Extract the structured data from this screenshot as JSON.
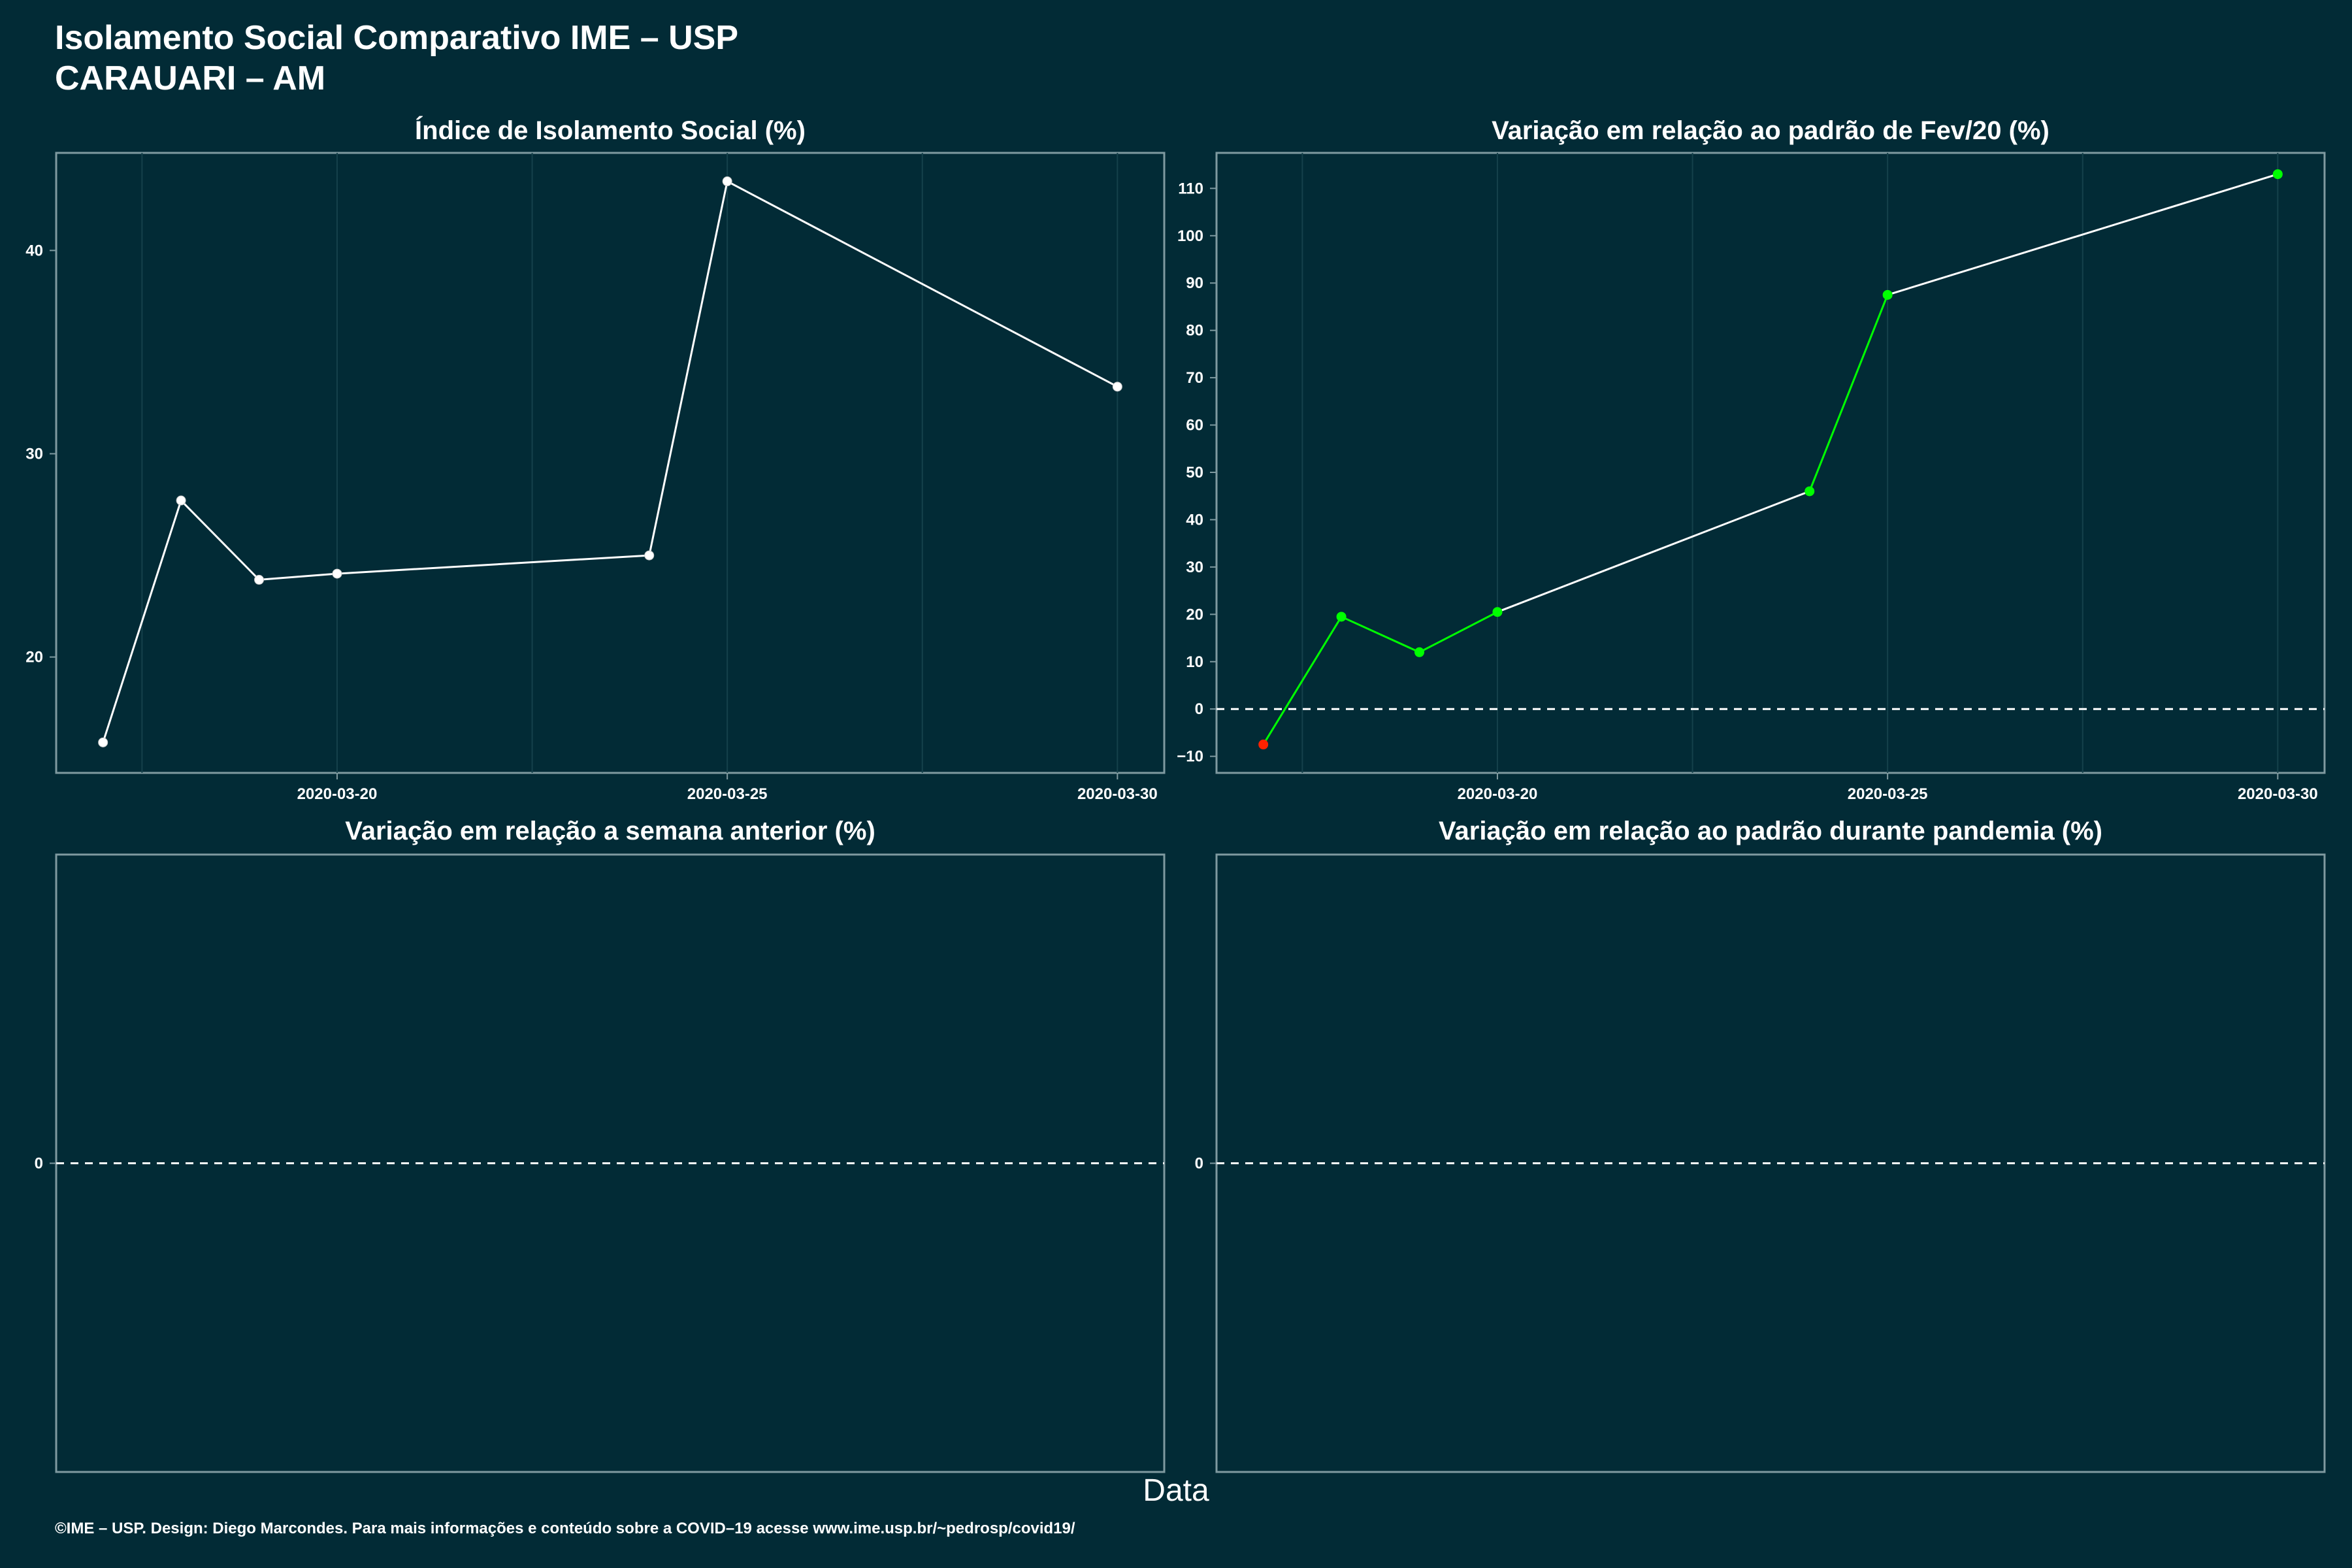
{
  "title": "Isolamento Social Comparativo IME – USP",
  "subtitle": "CARAUARI – AM",
  "xlabel": "Data",
  "caption": "©IME – USP. Design: Diego Marcondes. Para mais informações e conteúdo sobre a COVID–19 acesse www.ime.usp.br/~pedrosp/covid19/",
  "colors": {
    "background": "#022b36",
    "line": "#ffffff",
    "positive": "#00ff00",
    "negative": "#ff2200",
    "panel_border": "#7f9aa0",
    "grid": "#15414b"
  },
  "chart_data": [
    {
      "type": "line",
      "title": "Índice de Isolamento Social (%)",
      "x": [
        "2020-03-17",
        "2020-03-18",
        "2020-03-19",
        "2020-03-20",
        "2020-03-24",
        "2020-03-25",
        "2020-03-30"
      ],
      "values": [
        15.8,
        27.7,
        23.8,
        24.1,
        25.0,
        43.4,
        33.3
      ],
      "xlim": [
        "2020-03-16.4",
        "2020-03-30.6"
      ],
      "ylim": [
        14.3,
        44.8
      ],
      "xticks": [
        "2020-03-20",
        "2020-03-25",
        "2020-03-30"
      ],
      "yticks": [
        20,
        30,
        40
      ],
      "grid": true
    },
    {
      "type": "line",
      "title": "Variação em relação ao padrão de Fev/20 (%)",
      "x": [
        "2020-03-17",
        "2020-03-18",
        "2020-03-19",
        "2020-03-20",
        "2020-03-24",
        "2020-03-25",
        "2020-03-30"
      ],
      "values": [
        -7.5,
        19.5,
        12.0,
        20.5,
        46.0,
        87.5,
        113.0
      ],
      "xlim": [
        "2020-03-16.4",
        "2020-03-30.6"
      ],
      "ylim": [
        -13.5,
        117.5
      ],
      "xticks": [
        "2020-03-20",
        "2020-03-25",
        "2020-03-30"
      ],
      "yticks": [
        -10,
        0,
        10,
        20,
        30,
        40,
        50,
        60,
        70,
        80,
        90,
        100,
        110
      ],
      "reference_line": 0,
      "grid": true
    },
    {
      "type": "line",
      "title": "Variação em relação a semana anterior (%)",
      "x": [],
      "values": [],
      "yticks": [
        0
      ],
      "reference_line": 0
    },
    {
      "type": "line",
      "title": "Variação em relação ao padrão durante pandemia (%)",
      "x": [],
      "values": [],
      "yticks": [
        0
      ],
      "reference_line": 0
    }
  ]
}
